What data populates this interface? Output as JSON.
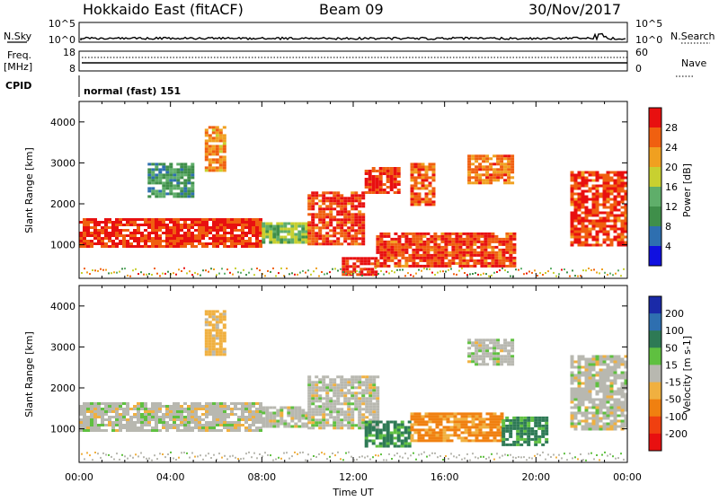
{
  "header": {
    "radar": "Hokkaido East (fitACF)",
    "beam": "Beam 09",
    "date": "30/Nov/2017"
  },
  "strips": {
    "nsky_label": "N.Sky",
    "nsearch_label": "N.Search",
    "noise_ticks": [
      "10^5",
      "10^0"
    ],
    "noise_ticks_right": [
      "10^5",
      "10^0"
    ],
    "freq_label_1": "Freq.",
    "freq_label_2": "[MHz]",
    "freq_ticks": [
      "18",
      "8"
    ],
    "nave_label": "Nave",
    "nave_ticks": [
      "60",
      "0"
    ],
    "cpid_label": "CPID",
    "cpid_value": "normal (fast) 151"
  },
  "chart_data": [
    {
      "type": "heatmap",
      "name": "power",
      "ylabel": "Slant Range [km]",
      "xlabel": "Time UT",
      "xlim": [
        0,
        24
      ],
      "ylim": [
        180,
        4500
      ],
      "y_ticks": [
        1000,
        2000,
        3000,
        4000
      ],
      "x_ticks": [
        "00:00",
        "04:00",
        "08:00",
        "12:00",
        "16:00",
        "20:00",
        "00:00"
      ],
      "colorbar": {
        "label": "Power [dB]",
        "ticks": [
          "28",
          "24",
          "20",
          "16",
          "12",
          "8",
          "4"
        ],
        "range": [
          0,
          30
        ],
        "colors": [
          "#1010e0",
          "#2e6fb0",
          "#3f8f4a",
          "#5fae6a",
          "#c8d030",
          "#f0a020",
          "#f06010",
          "#e81010"
        ]
      },
      "regions": [
        {
          "t": [
            0.0,
            8.0
          ],
          "r": [
            950,
            1650
          ],
          "level": 27
        },
        {
          "t": [
            8.0,
            10.0
          ],
          "r": [
            1050,
            1550
          ],
          "level": 14
        },
        {
          "t": [
            10.0,
            12.5
          ],
          "r": [
            1000,
            2300
          ],
          "level": 26
        },
        {
          "t": [
            11.5,
            13.0
          ],
          "r": [
            300,
            700
          ],
          "level": 28
        },
        {
          "t": [
            12.5,
            14.0
          ],
          "r": [
            2300,
            2900
          ],
          "level": 27
        },
        {
          "t": [
            13.0,
            19.0
          ],
          "r": [
            500,
            1300
          ],
          "level": 26
        },
        {
          "t": [
            14.5,
            15.5
          ],
          "r": [
            2000,
            3000
          ],
          "level": 24
        },
        {
          "t": [
            17.0,
            19.0
          ],
          "r": [
            2500,
            3200
          ],
          "level": 23
        },
        {
          "t": [
            21.5,
            24.0
          ],
          "r": [
            1000,
            2800
          ],
          "level": 26
        },
        {
          "t": [
            5.5,
            6.3
          ],
          "r": [
            2800,
            3900
          ],
          "level": 22
        },
        {
          "t": [
            3.0,
            5.0
          ],
          "r": [
            2200,
            3000
          ],
          "level": 10
        }
      ]
    },
    {
      "type": "heatmap",
      "name": "velocity",
      "ylabel": "Slant Range [km]",
      "xlabel": "Time UT",
      "xlim": [
        0,
        24
      ],
      "ylim": [
        180,
        4500
      ],
      "y_ticks": [
        1000,
        2000,
        3000,
        4000
      ],
      "x_ticks": [
        "00:00",
        "04:00",
        "08:00",
        "12:00",
        "16:00",
        "20:00",
        "00:00"
      ],
      "colorbar": {
        "label": "Velocity [m s-1]",
        "ticks": [
          "200",
          "100",
          "50",
          "15",
          "-15",
          "-50",
          "-100",
          "-200"
        ],
        "colors": [
          "#1a2aa8",
          "#2e6fb0",
          "#2e7a55",
          "#5fc040",
          "#b8b8b0",
          "#f0b040",
          "#f08010",
          "#f04010",
          "#e81010"
        ]
      },
      "regions": [
        {
          "t": [
            0.0,
            8.0
          ],
          "r": [
            950,
            1650
          ],
          "level": 0
        },
        {
          "t": [
            8.0,
            10.0
          ],
          "r": [
            1050,
            1550
          ],
          "level": 0
        },
        {
          "t": [
            10.0,
            13.0
          ],
          "r": [
            1000,
            2300
          ],
          "level": 0
        },
        {
          "t": [
            12.5,
            14.5
          ],
          "r": [
            600,
            1200
          ],
          "level": 60
        },
        {
          "t": [
            14.5,
            18.5
          ],
          "r": [
            700,
            1400
          ],
          "level": -60
        },
        {
          "t": [
            18.5,
            20.5
          ],
          "r": [
            600,
            1300
          ],
          "level": 60
        },
        {
          "t": [
            21.5,
            24.0
          ],
          "r": [
            1000,
            2800
          ],
          "level": 0
        },
        {
          "t": [
            17.0,
            19.0
          ],
          "r": [
            2600,
            3200
          ],
          "level": 0
        },
        {
          "t": [
            5.5,
            6.3
          ],
          "r": [
            2800,
            3900
          ],
          "level": -30
        }
      ]
    }
  ]
}
